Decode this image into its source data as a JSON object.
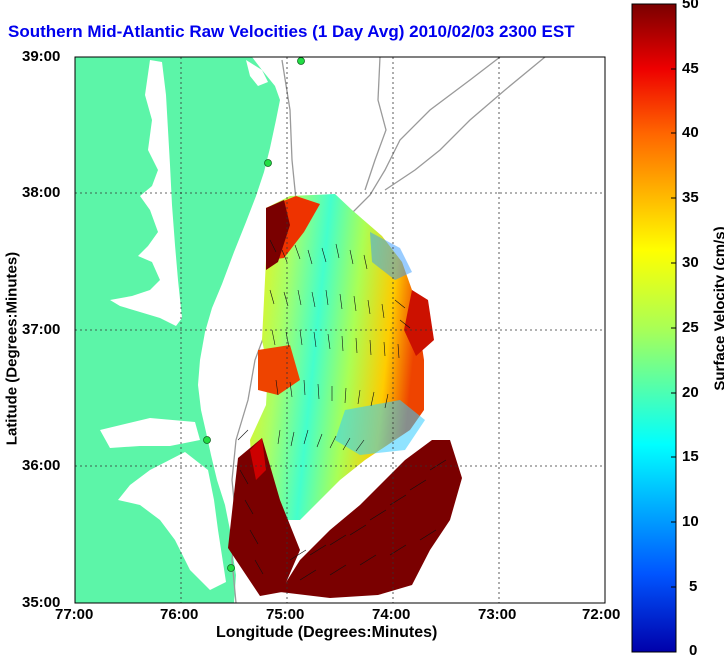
{
  "title": "Southern Mid-Atlantic Raw Velocities (1 Day Avg) 2010/02/03 2300 EST",
  "map": {
    "xlabel": "Longitude (Degrees:Minutes)",
    "ylabel": "Latitude (Degrees:Minutes)",
    "lon_ticks": [
      "77:00",
      "76:00",
      "75:00",
      "74:00",
      "73:00",
      "72:00"
    ],
    "lat_ticks": [
      "39:00",
      "38:00",
      "37:00",
      "36:00",
      "35:00"
    ],
    "land_color": "#5cf5a8",
    "colorbar": {
      "label": "Surface Velocity (cm/s)",
      "ticks": [
        "50",
        "45",
        "40",
        "35",
        "30",
        "25",
        "20",
        "15",
        "10",
        "5",
        "0"
      ],
      "min": 0,
      "max": 50,
      "colormap": "jet"
    }
  }
}
